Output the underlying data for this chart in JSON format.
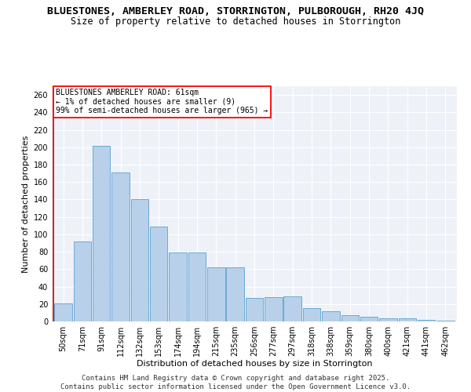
{
  "title_line1": "BLUESTONES, AMBERLEY ROAD, STORRINGTON, PULBOROUGH, RH20 4JQ",
  "title_line2": "Size of property relative to detached houses in Storrington",
  "xlabel": "Distribution of detached houses by size in Storrington",
  "ylabel": "Number of detached properties",
  "categories": [
    "50sqm",
    "71sqm",
    "91sqm",
    "112sqm",
    "132sqm",
    "153sqm",
    "174sqm",
    "194sqm",
    "215sqm",
    "235sqm",
    "256sqm",
    "277sqm",
    "297sqm",
    "318sqm",
    "338sqm",
    "359sqm",
    "380sqm",
    "400sqm",
    "421sqm",
    "441sqm",
    "462sqm"
  ],
  "values": [
    21,
    92,
    202,
    171,
    140,
    109,
    79,
    79,
    62,
    62,
    27,
    28,
    29,
    15,
    12,
    7,
    5,
    4,
    4,
    2,
    1
  ],
  "bar_color": "#b8d0ea",
  "bar_edge_color": "#6aaad4",
  "annotation_line1": "BLUESTONES AMBERLEY ROAD: 61sqm",
  "annotation_line2": "← 1% of detached houses are smaller (9)",
  "annotation_line3": "99% of semi-detached houses are larger (965) →",
  "vline_color": "#cc0000",
  "footer_line1": "Contains HM Land Registry data © Crown copyright and database right 2025.",
  "footer_line2": "Contains public sector information licensed under the Open Government Licence v3.0.",
  "background_color": "#eef2f8",
  "ylim": [
    0,
    270
  ],
  "yticks": [
    0,
    20,
    40,
    60,
    80,
    100,
    120,
    140,
    160,
    180,
    200,
    220,
    240,
    260
  ],
  "title_fontsize": 9.5,
  "subtitle_fontsize": 8.5,
  "axis_label_fontsize": 8,
  "tick_fontsize": 7,
  "annotation_fontsize": 7,
  "footer_fontsize": 6.5
}
